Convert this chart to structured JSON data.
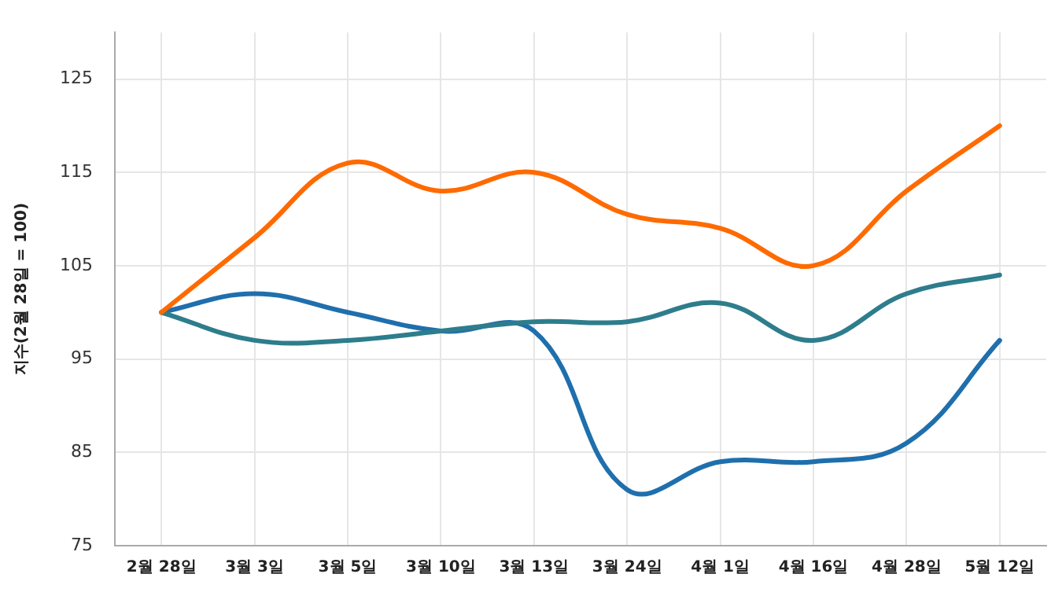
{
  "chart_data": {
    "type": "line",
    "ylabel": "지수(2월 28일 = 100)",
    "categories": [
      "2월 28일",
      "3월 3일",
      "3월 5일",
      "3월 10일",
      "3월 13일",
      "3월 24일",
      "4월 1일",
      "4월 16일",
      "4월 28일",
      "5월 12일"
    ],
    "series": [
      {
        "color": "#ff6a00",
        "values": [
          100,
          108,
          116,
          113,
          115,
          110.5,
          109,
          105,
          113,
          120
        ]
      },
      {
        "color": "#2e7d8c",
        "values": [
          100,
          97,
          97,
          98,
          99,
          99,
          101,
          97,
          102,
          104
        ]
      },
      {
        "color": "#1f6fad",
        "values": [
          100,
          102,
          100,
          98,
          98,
          81,
          84,
          84,
          86,
          97
        ]
      }
    ],
    "ylim": [
      75,
      130
    ],
    "yticks": [
      75,
      85,
      95,
      105,
      115,
      125
    ],
    "grid": true,
    "legend": false,
    "marker": "none",
    "line_style": "solid"
  }
}
